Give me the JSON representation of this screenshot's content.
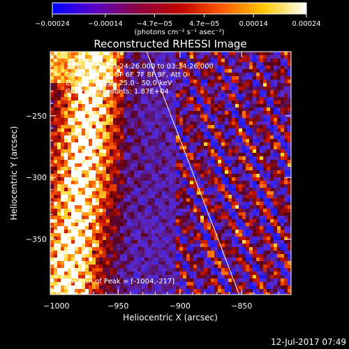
{
  "chart_data": {
    "type": "heatmap",
    "title": "Reconstructed RHESSI Image",
    "xlabel": "Heliocentric X (arcsec)",
    "ylabel": "Heliocentric Y (arcsec)",
    "xlim": [
      -1005,
      -810
    ],
    "ylim": [
      -395,
      -198
    ],
    "xticks": [
      {
        "value": -1000,
        "label": "−1000"
      },
      {
        "value": -950,
        "label": "−950"
      },
      {
        "value": -900,
        "label": "−900"
      },
      {
        "value": -850,
        "label": "−850"
      }
    ],
    "yticks": [
      {
        "value": -250,
        "label": "−250"
      },
      {
        "value": -300,
        "label": "−300"
      },
      {
        "value": -350,
        "label": "−350"
      }
    ],
    "colorbar": {
      "range": [
        -0.00024,
        0.00024
      ],
      "ticks": [
        {
          "value": -0.00024,
          "label": "−0.00024"
        },
        {
          "value": -0.00014,
          "label": "−0.00014"
        },
        {
          "value": -4.7e-05,
          "label": "−4.7e−05"
        },
        {
          "value": 4.7e-05,
          "label": "4.7e−05"
        },
        {
          "value": 0.00014,
          "label": "0.00014"
        },
        {
          "value": 0.00024,
          "label": "0.00024"
        }
      ],
      "unit_label": "(photons cm⁻² s⁻¹ asec⁻²)",
      "colors": [
        "#0000ff",
        "#5a00c8",
        "#8a0040",
        "#c00000",
        "#ff5a00",
        "#ffc800",
        "#ffffff"
      ]
    },
    "annotations": [
      "12-Jul-2015 03:24:26.000 to 03:34:26.000",
      "Detectors: 3F 5F 6F 7F 8F 9F, Att 0",
      "Energy Range: 25.0 - 50.0 keV",
      "Clean     Total counts: 1.87E+04"
    ],
    "peak_label": "Position of Peak = [-1004,-217]",
    "limb_line": [
      {
        "x": -927,
        "y": -198
      },
      {
        "x": -852,
        "y": -395
      }
    ],
    "palette": {
      "low_blue": "#1c1cff",
      "purple": "#5a2ad0",
      "dark_red": "#5a0010",
      "red": "#c81400",
      "orange": "#ff6400",
      "yellow": "#ffdc32",
      "white": "#ffffff"
    }
  },
  "footer": {
    "timestamp": "12-Jul-2017 07:49"
  }
}
